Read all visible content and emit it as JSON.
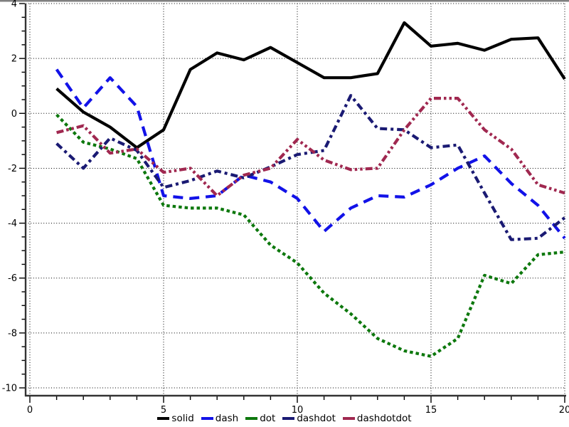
{
  "window": {
    "top_border_color": "#7f7f7f"
  },
  "axes": {
    "grid_color": "#000000",
    "spine_color": "#333333",
    "x_major_ticks": [
      0,
      5,
      10,
      15,
      20
    ],
    "x_tick_labels": [
      "0",
      "5",
      "10",
      "15",
      "20"
    ],
    "x_minor_step": 1,
    "y_major_ticks": [
      4,
      2,
      0,
      -2,
      -4,
      -6,
      -8,
      -10
    ],
    "y_tick_labels": [
      "4",
      "2",
      "0",
      "-2",
      "-4",
      "-6",
      "-8",
      "-10"
    ],
    "y_minor_step": 0.5
  },
  "chart_data": {
    "type": "line",
    "title": "",
    "xlabel": "",
    "ylabel": "",
    "grid": true,
    "legend_position": "bottom-center",
    "xlim": [
      0,
      20
    ],
    "ylim": [
      -10,
      4
    ],
    "x": [
      1,
      2,
      3,
      4,
      5,
      6,
      7,
      8,
      9,
      10,
      11,
      12,
      13,
      14,
      15,
      16,
      17,
      18,
      19,
      20
    ],
    "series": [
      {
        "name": "solid",
        "color": "#000000",
        "linestyle": "solid",
        "values": [
          0.9,
          0.05,
          -0.5,
          -1.25,
          -0.6,
          1.6,
          2.2,
          1.95,
          2.4,
          1.85,
          1.3,
          1.3,
          1.45,
          3.3,
          2.45,
          2.55,
          2.3,
          2.7,
          2.75,
          1.25
        ]
      },
      {
        "name": "dash",
        "color": "#1212e8",
        "linestyle": "dash",
        "values": [
          1.6,
          0.2,
          1.3,
          0.25,
          -3.0,
          -3.1,
          -3.0,
          -2.25,
          -2.5,
          -3.1,
          -4.3,
          -3.45,
          -3.0,
          -3.05,
          -2.6,
          -2.0,
          -1.55,
          -2.55,
          -3.35,
          -4.55
        ]
      },
      {
        "name": "dot",
        "color": "#0d780d",
        "linestyle": "dot",
        "values": [
          -0.05,
          -1.05,
          -1.3,
          -1.65,
          -3.35,
          -3.45,
          -3.45,
          -3.7,
          -4.8,
          -5.45,
          -6.55,
          -7.3,
          -8.2,
          -8.65,
          -8.85,
          -8.2,
          -5.9,
          -6.2,
          -5.15,
          -5.05
        ]
      },
      {
        "name": "dashdot",
        "color": "#1a1a73",
        "linestyle": "dashdot",
        "values": [
          -1.1,
          -2.0,
          -0.9,
          -1.35,
          -2.7,
          -2.45,
          -2.1,
          -2.35,
          -1.95,
          -1.5,
          -1.35,
          0.65,
          -0.55,
          -0.6,
          -1.25,
          -1.15,
          -2.9,
          -4.6,
          -4.55,
          -3.8
        ]
      },
      {
        "name": "dashdotdot",
        "color": "#a02850",
        "linestyle": "dashdotdot",
        "values": [
          -0.7,
          -0.45,
          -1.45,
          -1.3,
          -2.15,
          -2.0,
          -3.0,
          -2.25,
          -2.0,
          -0.95,
          -1.7,
          -2.05,
          -2.0,
          -0.6,
          0.55,
          0.55,
          -0.6,
          -1.3,
          -2.6,
          -2.9
        ]
      }
    ]
  }
}
